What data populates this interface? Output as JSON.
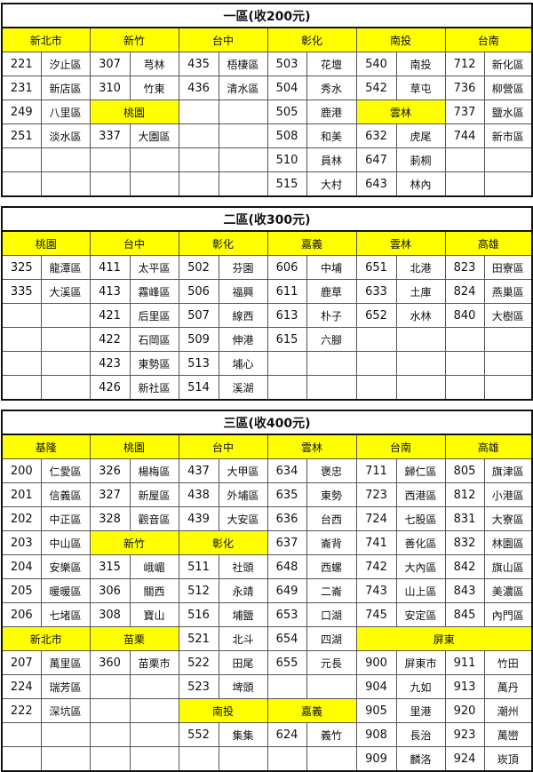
{
  "zones": [
    {
      "title": "一區(收200元)",
      "headers": [
        "新北市",
        "新竹",
        "台中",
        "彰化",
        "南投",
        "台南"
      ],
      "rows": [
        [
          "221",
          "汐止區",
          "307",
          "芎林",
          "435",
          "梧棲區",
          "503",
          "花壇",
          "540",
          "南投",
          "712",
          "新化區"
        ],
        [
          "231",
          "新店區",
          "310",
          "竹東",
          "436",
          "清水區",
          "504",
          "秀水",
          "542",
          "草屯",
          "736",
          "柳營區"
        ],
        [
          "249",
          "八里區",
          {
            "region": "桃園",
            "span": 2
          },
          null,
          null,
          "505",
          "鹿港",
          {
            "region": "雲林",
            "span": 2
          },
          "737",
          "鹽水區"
        ],
        [
          "251",
          "淡水區",
          "337",
          "大園區",
          null,
          null,
          "508",
          "和美",
          "632",
          "虎尾",
          "744",
          "新市區"
        ],
        [
          null,
          null,
          null,
          null,
          null,
          null,
          "510",
          "員林",
          "647",
          "莿桐",
          null,
          null
        ],
        [
          null,
          null,
          null,
          null,
          null,
          null,
          "515",
          "大村",
          "643",
          "林內",
          null,
          null
        ]
      ]
    },
    {
      "title": "二區(收300元)",
      "headers": [
        "桃園",
        "台中",
        "彰化",
        "嘉義",
        "雲林",
        "高雄"
      ],
      "rows": [
        [
          "325",
          "龍潭區",
          "411",
          "太平區",
          "502",
          "芬園",
          "606",
          "中埔",
          "651",
          "北港",
          "823",
          "田寮區"
        ],
        [
          "335",
          "大溪區",
          "413",
          "霧峰區",
          "506",
          "福興",
          "611",
          "鹿草",
          "633",
          "土庫",
          "824",
          "燕巢區"
        ],
        [
          null,
          null,
          "421",
          "后里區",
          "507",
          "線西",
          "613",
          "朴子",
          "652",
          "水林",
          "840",
          "大樹區"
        ],
        [
          null,
          null,
          "422",
          "石岡區",
          "509",
          "伸港",
          "615",
          "六腳",
          null,
          null,
          null,
          null
        ],
        [
          null,
          null,
          "423",
          "東勢區",
          "513",
          "埔心",
          null,
          null,
          null,
          null,
          null,
          null
        ],
        [
          null,
          null,
          "426",
          "新社區",
          "514",
          "溪湖",
          null,
          null,
          null,
          null,
          null,
          null
        ]
      ]
    },
    {
      "title": "三區(收400元)",
      "headers": [
        "基隆",
        "桃園",
        "台中",
        "雲林",
        "台南",
        "高雄"
      ],
      "rows": [
        [
          "200",
          "仁愛區",
          "326",
          "楊梅區",
          "437",
          "大甲區",
          "634",
          "褒忠",
          "711",
          "歸仁區",
          "805",
          "旗津區"
        ],
        [
          "201",
          "信義區",
          "327",
          "新屋區",
          "438",
          "外埔區",
          "635",
          "東勢",
          "723",
          "西港區",
          "812",
          "小港區"
        ],
        [
          "202",
          "中正區",
          "328",
          "觀音區",
          "439",
          "大安區",
          "636",
          "台西",
          "724",
          "七股區",
          "831",
          "大寮區"
        ],
        [
          "203",
          "中山區",
          {
            "region": "新竹",
            "span": 2
          },
          {
            "region": "彰化",
            "span": 2
          },
          "637",
          "崙背",
          "741",
          "善化區",
          "832",
          "林園區"
        ],
        [
          "204",
          "安樂區",
          "315",
          "峨嵋",
          "511",
          "社頭",
          "648",
          "西螺",
          "742",
          "大內區",
          "842",
          "旗山區"
        ],
        [
          "205",
          "暖暖區",
          "306",
          "關西",
          "512",
          "永靖",
          "649",
          "二崙",
          "743",
          "山上區",
          "843",
          "美濃區"
        ],
        [
          "206",
          "七堵區",
          "308",
          "寶山",
          "516",
          "埔鹽",
          "653",
          "口湖",
          "745",
          "安定區",
          "845",
          "內門區"
        ],
        [
          {
            "region": "新北市",
            "span": 2
          },
          {
            "region": "苗栗",
            "span": 2
          },
          "521",
          "北斗",
          "654",
          "四湖",
          {
            "region": "屏東",
            "span": 4
          }
        ],
        [
          "207",
          "萬里區",
          "360",
          "苗栗市",
          "522",
          "田尾",
          "655",
          "元長",
          "900",
          "屏東市",
          "911",
          "竹田"
        ],
        [
          "224",
          "瑞芳區",
          null,
          null,
          "523",
          "埤頭",
          null,
          null,
          "904",
          "九如",
          "913",
          "萬丹"
        ],
        [
          "222",
          "深坑區",
          null,
          null,
          {
            "region": "南投",
            "span": 2
          },
          {
            "region": "嘉義",
            "span": 2
          },
          "905",
          "里港",
          "920",
          "潮州"
        ],
        [
          null,
          null,
          null,
          null,
          "552",
          "集集",
          "624",
          "義竹",
          "908",
          "長治",
          "923",
          "萬巒"
        ],
        [
          null,
          null,
          null,
          null,
          null,
          null,
          null,
          null,
          "909",
          "麟洛",
          "924",
          "崁頂"
        ]
      ]
    }
  ],
  "colors": {
    "region_header": "#ffff00",
    "border": "#111111"
  }
}
